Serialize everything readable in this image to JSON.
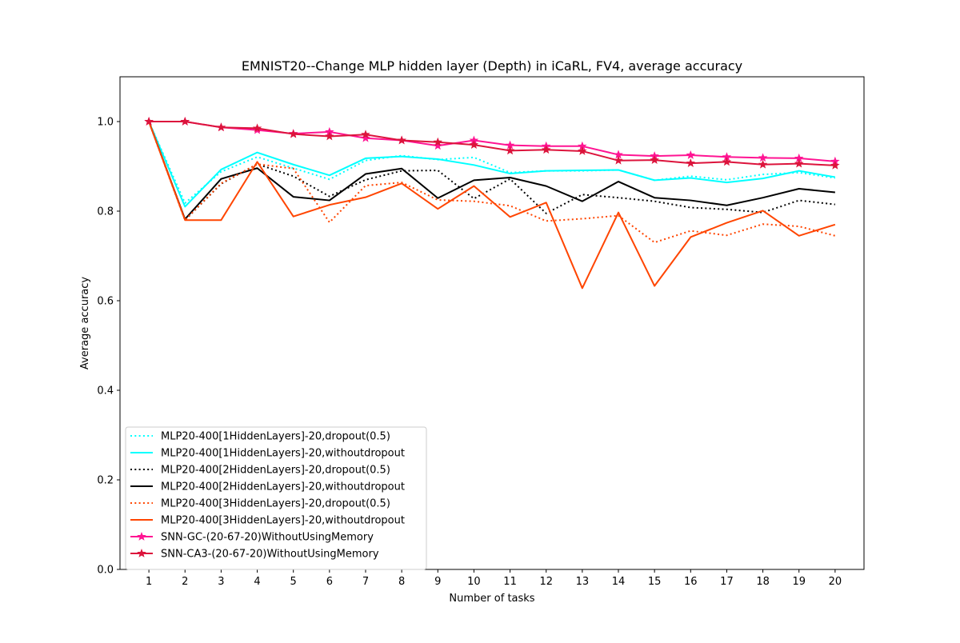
{
  "chart_data": {
    "type": "line",
    "title": "EMNIST20--Change MLP hidden layer (Depth) in iCaRL, FV4, average accuracy",
    "xlabel": "Number of tasks",
    "ylabel": "Average accuracy",
    "x": [
      1,
      2,
      3,
      4,
      5,
      6,
      7,
      8,
      9,
      10,
      11,
      12,
      13,
      14,
      15,
      16,
      17,
      18,
      19,
      20
    ],
    "xlim": [
      0.2,
      20.8
    ],
    "ylim": [
      0.0,
      1.1
    ],
    "yticks": [
      "0.0",
      "0.2",
      "0.4",
      "0.6",
      "0.8",
      "1.0"
    ],
    "legend_position": "lower-left",
    "grid": false,
    "series": [
      {
        "name": "MLP20-400[1HiddenLayers]-20,dropout(0.5)",
        "color": "#00ffff",
        "style": "dotted",
        "marker": "none",
        "values": [
          1.0,
          0.818,
          0.888,
          0.921,
          0.896,
          0.871,
          0.913,
          0.924,
          0.915,
          0.92,
          0.886,
          0.89,
          0.89,
          0.892,
          0.869,
          0.878,
          0.87,
          0.882,
          0.886,
          0.874
        ]
      },
      {
        "name": "MLP20-400[1HiddenLayers]-20,withoutdropout",
        "color": "#00ffff",
        "style": "solid",
        "marker": "none",
        "values": [
          1.0,
          0.81,
          0.893,
          0.931,
          0.904,
          0.88,
          0.918,
          0.922,
          0.916,
          0.903,
          0.884,
          0.89,
          0.891,
          0.892,
          0.869,
          0.874,
          0.864,
          0.873,
          0.89,
          0.876
        ]
      },
      {
        "name": "MLP20-400[2HiddenLayers]-20,dropout(0.5)",
        "color": "#000000",
        "style": "dotted",
        "marker": "none",
        "values": [
          1.0,
          0.78,
          0.861,
          0.905,
          0.878,
          0.833,
          0.87,
          0.89,
          0.891,
          0.828,
          0.872,
          0.795,
          0.837,
          0.83,
          0.822,
          0.808,
          0.804,
          0.797,
          0.824,
          0.815
        ]
      },
      {
        "name": "MLP20-400[2HiddenLayers]-20,withoutdropout",
        "color": "#000000",
        "style": "solid",
        "marker": "none",
        "values": [
          1.0,
          0.782,
          0.872,
          0.896,
          0.832,
          0.824,
          0.883,
          0.895,
          0.829,
          0.869,
          0.875,
          0.856,
          0.822,
          0.866,
          0.83,
          0.824,
          0.813,
          0.83,
          0.85,
          0.842
        ]
      },
      {
        "name": "MLP20-400[3HiddenLayers]-20,dropout(0.5)",
        "color": "#ff4500",
        "style": "dotted",
        "marker": "none",
        "values": [
          1.0,
          0.78,
          0.862,
          0.905,
          0.895,
          0.775,
          0.857,
          0.864,
          0.825,
          0.822,
          0.812,
          0.778,
          0.783,
          0.79,
          0.73,
          0.756,
          0.746,
          0.771,
          0.766,
          0.745
        ]
      },
      {
        "name": "MLP20-400[3HiddenLayers]-20,withoutdropout",
        "color": "#ff4500",
        "style": "solid",
        "marker": "none",
        "values": [
          1.0,
          0.78,
          0.78,
          0.91,
          0.788,
          0.814,
          0.831,
          0.862,
          0.805,
          0.856,
          0.787,
          0.819,
          0.628,
          0.797,
          0.633,
          0.742,
          0.774,
          0.801,
          0.745,
          0.77
        ]
      },
      {
        "name": "SNN-GC-(20-67-20)WithoutUsingMemory",
        "color": "#ff1493",
        "style": "solid",
        "marker": "star",
        "values": [
          1.0,
          1.0,
          0.987,
          0.981,
          0.973,
          0.977,
          0.963,
          0.958,
          0.946,
          0.958,
          0.947,
          0.945,
          0.945,
          0.926,
          0.923,
          0.925,
          0.921,
          0.919,
          0.918,
          0.911
        ]
      },
      {
        "name": "SNN-CA3-(20-67-20)WithoutUsingMemory",
        "color": "#dc143c",
        "style": "solid",
        "marker": "star",
        "values": [
          1.0,
          1.0,
          0.987,
          0.985,
          0.972,
          0.967,
          0.971,
          0.958,
          0.954,
          0.948,
          0.935,
          0.937,
          0.934,
          0.913,
          0.914,
          0.907,
          0.91,
          0.904,
          0.906,
          0.902
        ]
      }
    ]
  }
}
